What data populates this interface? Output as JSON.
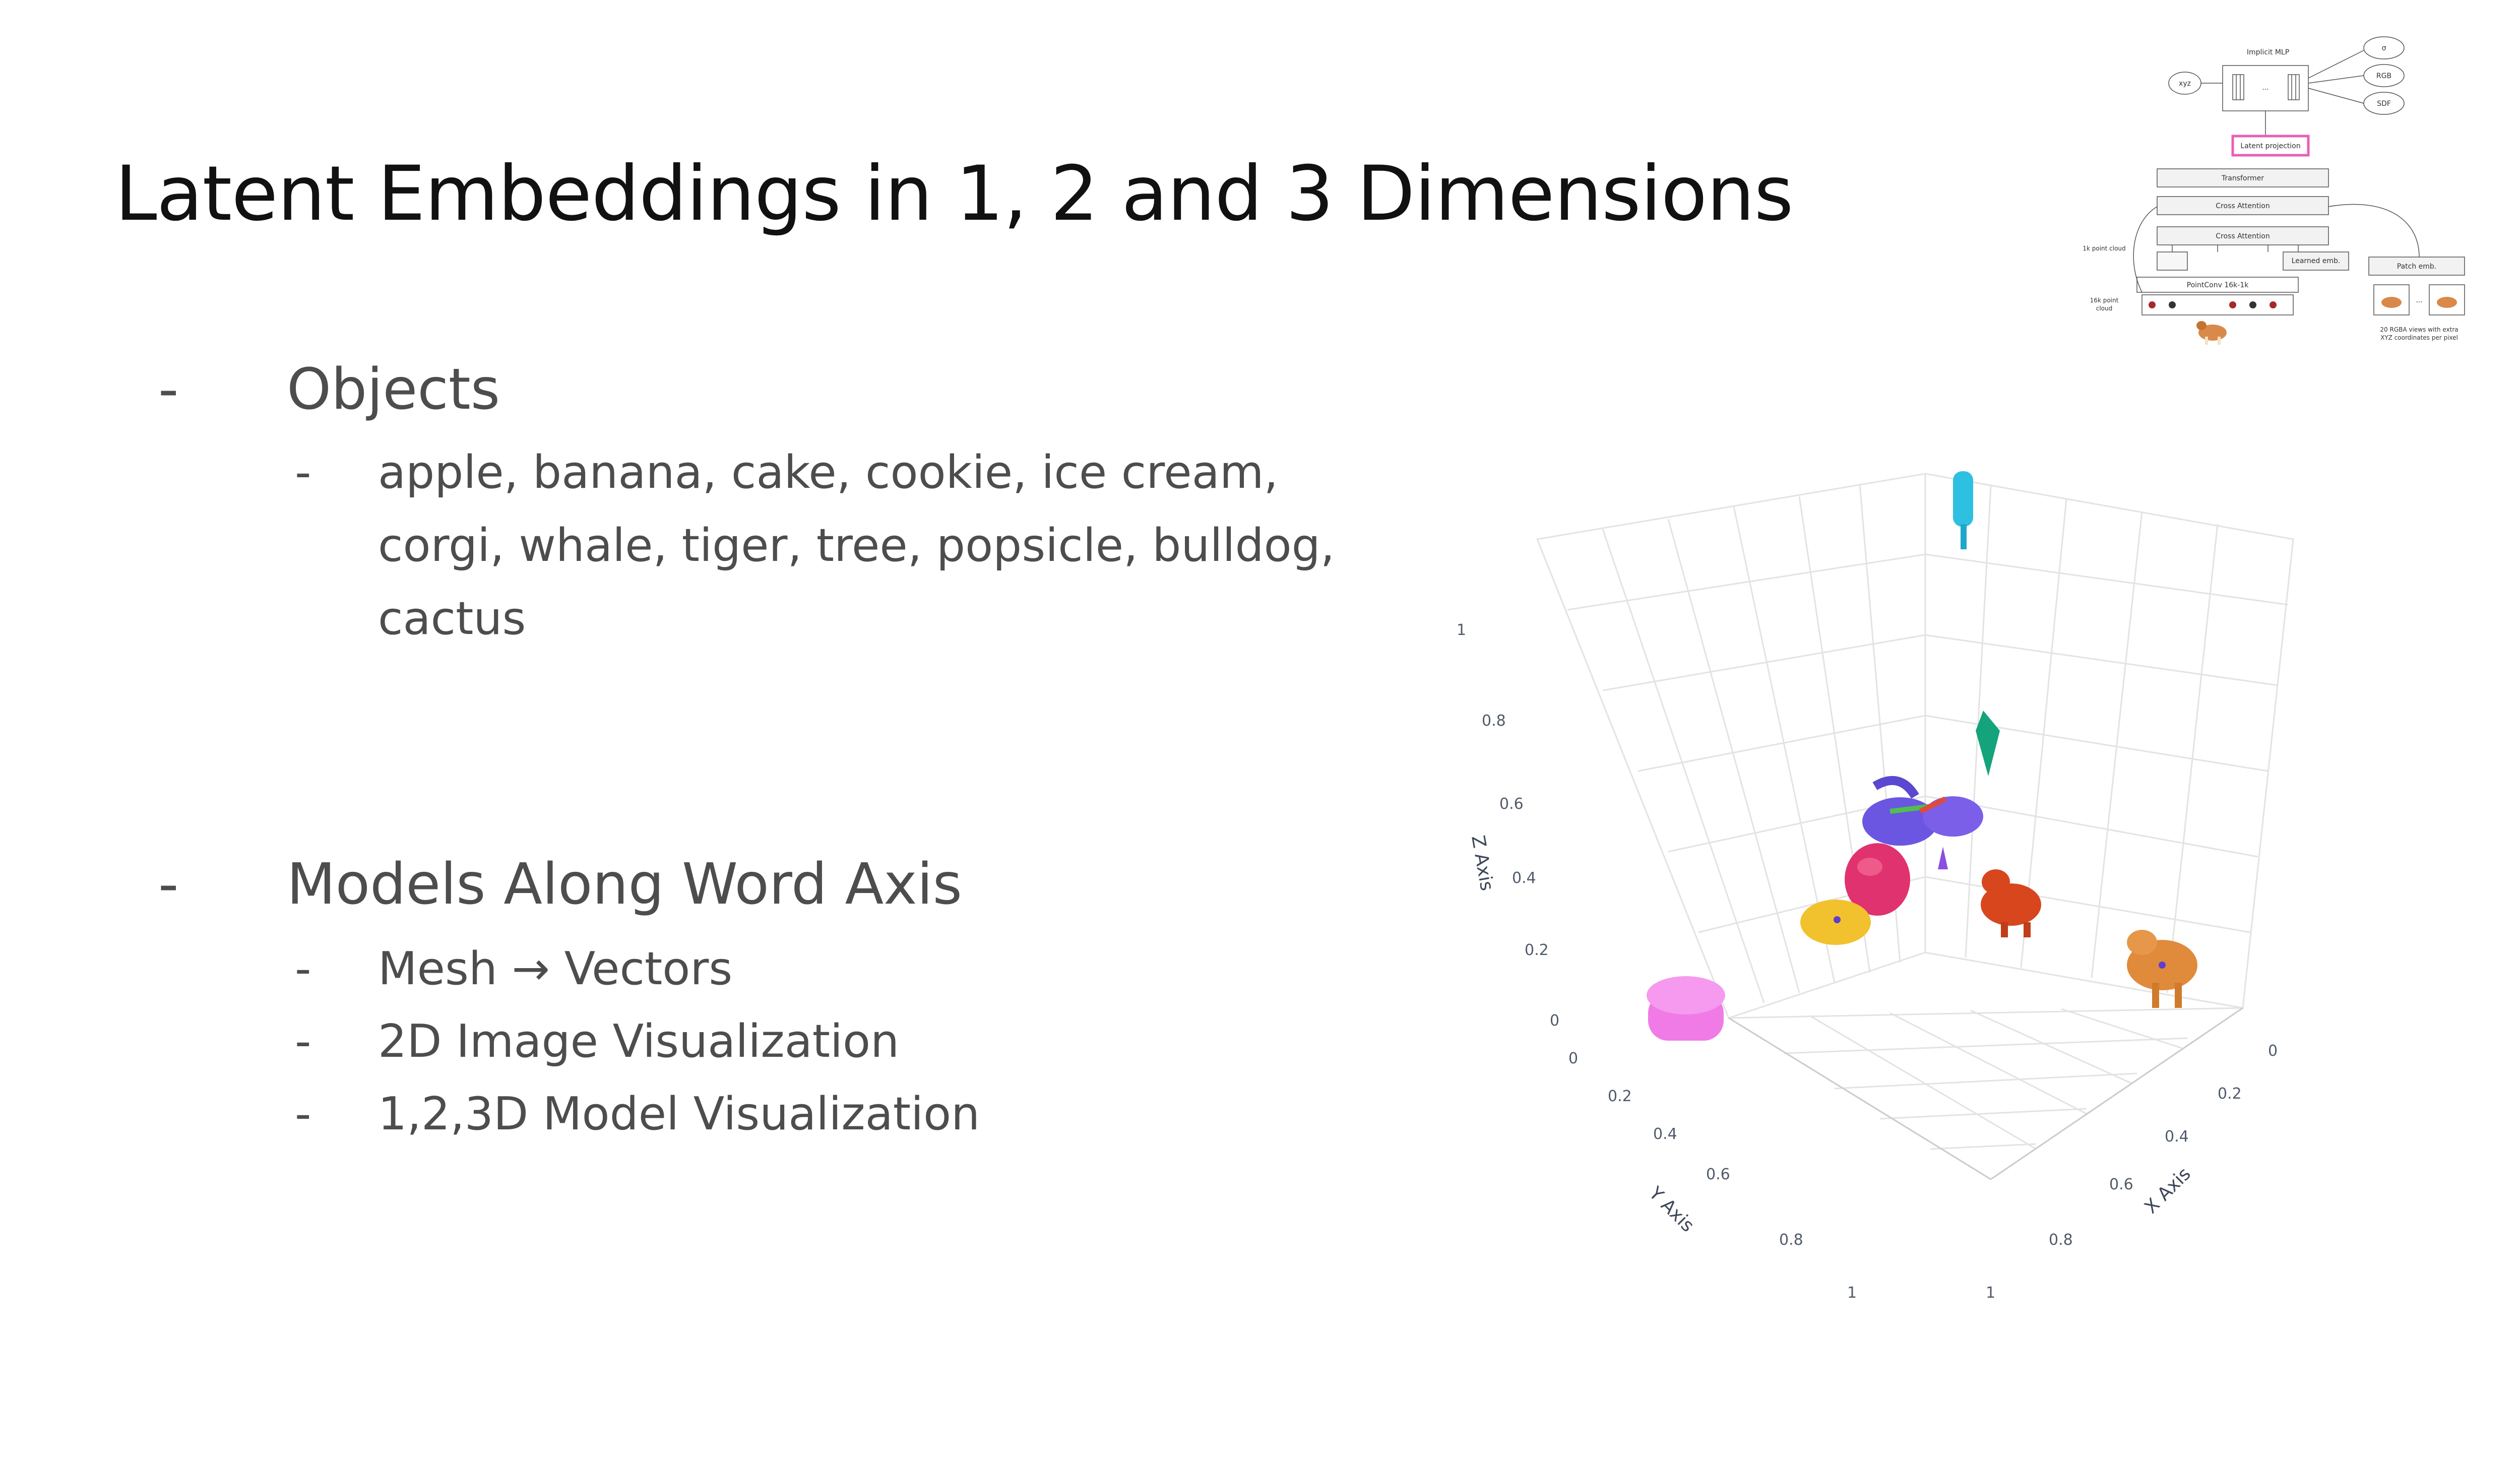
{
  "slide": {
    "title": "Latent Embeddings in 1, 2 and 3 Dimensions",
    "bullets": {
      "objects": {
        "dash": "-",
        "label": "Objects",
        "sub": [
          "apple, banana, cake, cookie, ice cream,",
          "corgi, whale, tiger, tree, popsicle, bulldog,",
          "cactus"
        ]
      },
      "models": {
        "dash": "-",
        "label": "Models Along Word Axis",
        "sub": [
          "Mesh → Vectors",
          "2D Image Visualization",
          "1,2,3D Model Visualization"
        ]
      }
    }
  },
  "architecture_diagram": {
    "implicit_mlp": "Implicit MLP",
    "xyz": "xyz",
    "sigma": "σ",
    "rgb": "RGB",
    "sdf": "SDF",
    "latent_projection": "Latent projection",
    "transformer": "Transformer",
    "cross_attention_1": "Cross Attention",
    "cross_attention_2": "Cross Attention",
    "learned_emb": "Learned emb.",
    "patch_emb": "Patch emb.",
    "pointconv": "PointConv 16k-1k",
    "point_cloud_1k": "1k point cloud",
    "point_cloud_16k_line1": "16k point",
    "point_cloud_16k_line2": "cloud",
    "views_line1": "20 RGBA views with extra",
    "views_line2": "XYZ coordinates per pixel",
    "ellipsis": "...",
    "highlight_color": "#e85fb8"
  },
  "plot3d": {
    "axes": {
      "x_title": "X Axis",
      "y_title": "Y Axis",
      "z_title": "Z Axis",
      "x_ticks": [
        "0",
        "0.2",
        "0.4",
        "0.6",
        "0.8",
        "1"
      ],
      "y_ticks": [
        "0",
        "0.2",
        "0.4",
        "0.6",
        "0.8",
        "1"
      ],
      "z_ticks": [
        "0",
        "0.2",
        "0.4",
        "0.6",
        "0.8",
        "1"
      ]
    },
    "grid": true,
    "objects": [
      {
        "name": "popsicle",
        "color": "#2ec0e0"
      },
      {
        "name": "tree",
        "color": "#14a37a"
      },
      {
        "name": "whale",
        "color": "#6a56e0"
      },
      {
        "name": "apple",
        "color": "#e0326e"
      },
      {
        "name": "cookie",
        "color": "#f2c12e"
      },
      {
        "name": "corgi",
        "color": "#d8461e"
      },
      {
        "name": "tiger",
        "color": "#e08a3c"
      },
      {
        "name": "cake",
        "color": "#f07be6"
      }
    ]
  }
}
